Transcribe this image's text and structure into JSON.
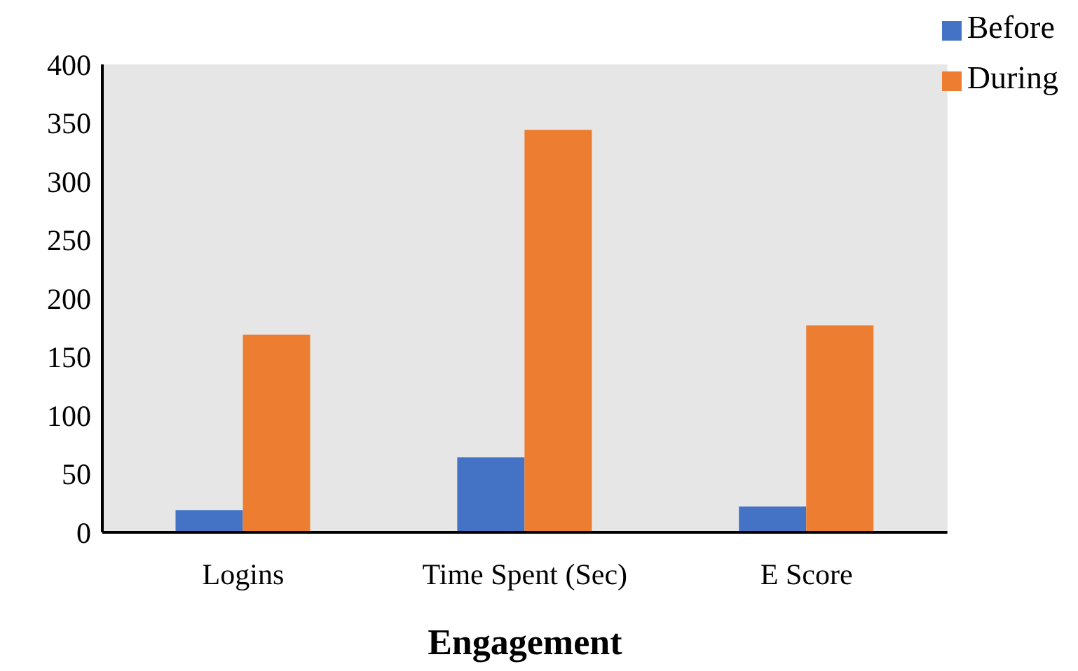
{
  "chart_data": {
    "type": "bar",
    "xlabel": "Engagement",
    "categories": [
      "Logins",
      "Time Spent (Sec)",
      "E Score"
    ],
    "series": [
      {
        "name": "Before",
        "color": "#4472c4",
        "values": [
          19,
          64,
          22
        ]
      },
      {
        "name": "During",
        "color": "#ed7d31",
        "values": [
          169,
          344,
          177
        ]
      }
    ],
    "ylim": [
      0,
      400
    ],
    "yticks": [
      0,
      50,
      100,
      150,
      200,
      250,
      300,
      350,
      400
    ],
    "legend": "top right"
  }
}
